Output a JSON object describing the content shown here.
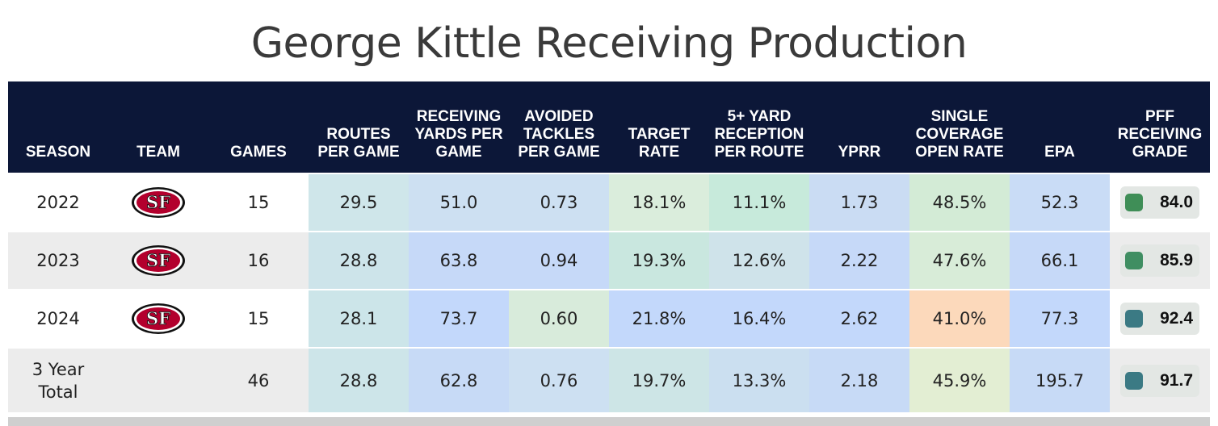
{
  "title": "George Kittle Receiving Production",
  "columns": [
    {
      "key": "season",
      "label": "SEASON"
    },
    {
      "key": "team",
      "label": "TEAM"
    },
    {
      "key": "games",
      "label": "GAMES"
    },
    {
      "key": "routes",
      "label": "ROUTES PER GAME"
    },
    {
      "key": "rec_yards",
      "label": "RECEIVING YARDS PER GAME"
    },
    {
      "key": "avoided",
      "label": "AVOIDED TACKLES PER GAME"
    },
    {
      "key": "target",
      "label": "TARGET RATE"
    },
    {
      "key": "five_plus",
      "label": "5+ YARD RECEPTION PER ROUTE"
    },
    {
      "key": "yprr",
      "label": "YPRR"
    },
    {
      "key": "single_cov",
      "label": "SINGLE COVERAGE OPEN RATE"
    },
    {
      "key": "epa",
      "label": "EPA"
    },
    {
      "key": "grade",
      "label": "PFF RECEIVING GRADE"
    }
  ],
  "team_logo": {
    "icon": "49ers-logo-icon",
    "text": "SF",
    "color": "#b3002d",
    "outline": "#ffffff",
    "trim": "#111111"
  },
  "rows": [
    {
      "season": "2022",
      "has_logo": true,
      "games": "15",
      "routes": "29.5",
      "rec_yards": "51.0",
      "avoided": "0.73",
      "target": "18.1%",
      "five_plus": "11.1%",
      "yprr": "1.73",
      "single_cov": "48.5%",
      "epa": "52.3",
      "grade": "84.0",
      "colors": {
        "routes": "#cfe6ea",
        "rec_yards": "#cde0f2",
        "avoided": "#cde0f2",
        "target": "#daeddc",
        "five_plus": "#c7eadb",
        "yprr": "#cadcf3",
        "single_cov": "#d3ebd6",
        "epa": "#c9dcf6"
      },
      "grade_color": "#3f8e57"
    },
    {
      "season": "2023",
      "has_logo": true,
      "games": "16",
      "routes": "28.8",
      "rec_yards": "63.8",
      "avoided": "0.94",
      "target": "19.3%",
      "five_plus": "12.6%",
      "yprr": "2.22",
      "single_cov": "47.6%",
      "epa": "66.1",
      "grade": "85.9",
      "colors": {
        "routes": "#cde4ea",
        "rec_yards": "#c6d9f8",
        "avoided": "#c6d9f8",
        "target": "#c9e7df",
        "five_plus": "#cfe3ea",
        "yprr": "#c6d9f8",
        "single_cov": "#d8ecd8",
        "epa": "#c6d9f8"
      },
      "grade_color": "#3f8e62"
    },
    {
      "season": "2024",
      "has_logo": true,
      "games": "15",
      "routes": "28.1",
      "rec_yards": "73.7",
      "avoided": "0.60",
      "target": "21.8%",
      "five_plus": "16.4%",
      "yprr": "2.62",
      "single_cov": "41.0%",
      "epa": "77.3",
      "grade": "92.4",
      "colors": {
        "routes": "#cce5e9",
        "rec_yards": "#c3d8fb",
        "avoided": "#d8ebdb",
        "target": "#c3d8fb",
        "five_plus": "#c3d8fb",
        "yprr": "#c3d8fb",
        "single_cov": "#fcd9bb",
        "epa": "#c3d8fb"
      },
      "grade_color": "#3b7a84"
    },
    {
      "season": "3 Year Total",
      "has_logo": false,
      "games": "46",
      "routes": "28.8",
      "rec_yards": "62.8",
      "avoided": "0.76",
      "target": "19.7%",
      "five_plus": "13.3%",
      "yprr": "2.18",
      "single_cov": "45.9%",
      "epa": "195.7",
      "grade": "91.7",
      "colors": {
        "routes": "#cde5e9",
        "rec_yards": "#c7daf6",
        "avoided": "#cde0f2",
        "target": "#cde5e6",
        "five_plus": "#cbdff0",
        "yprr": "#c7daf6",
        "single_cov": "#e3eed3",
        "epa": "#c7daf6"
      },
      "grade_color": "#3b7a84"
    }
  ]
}
